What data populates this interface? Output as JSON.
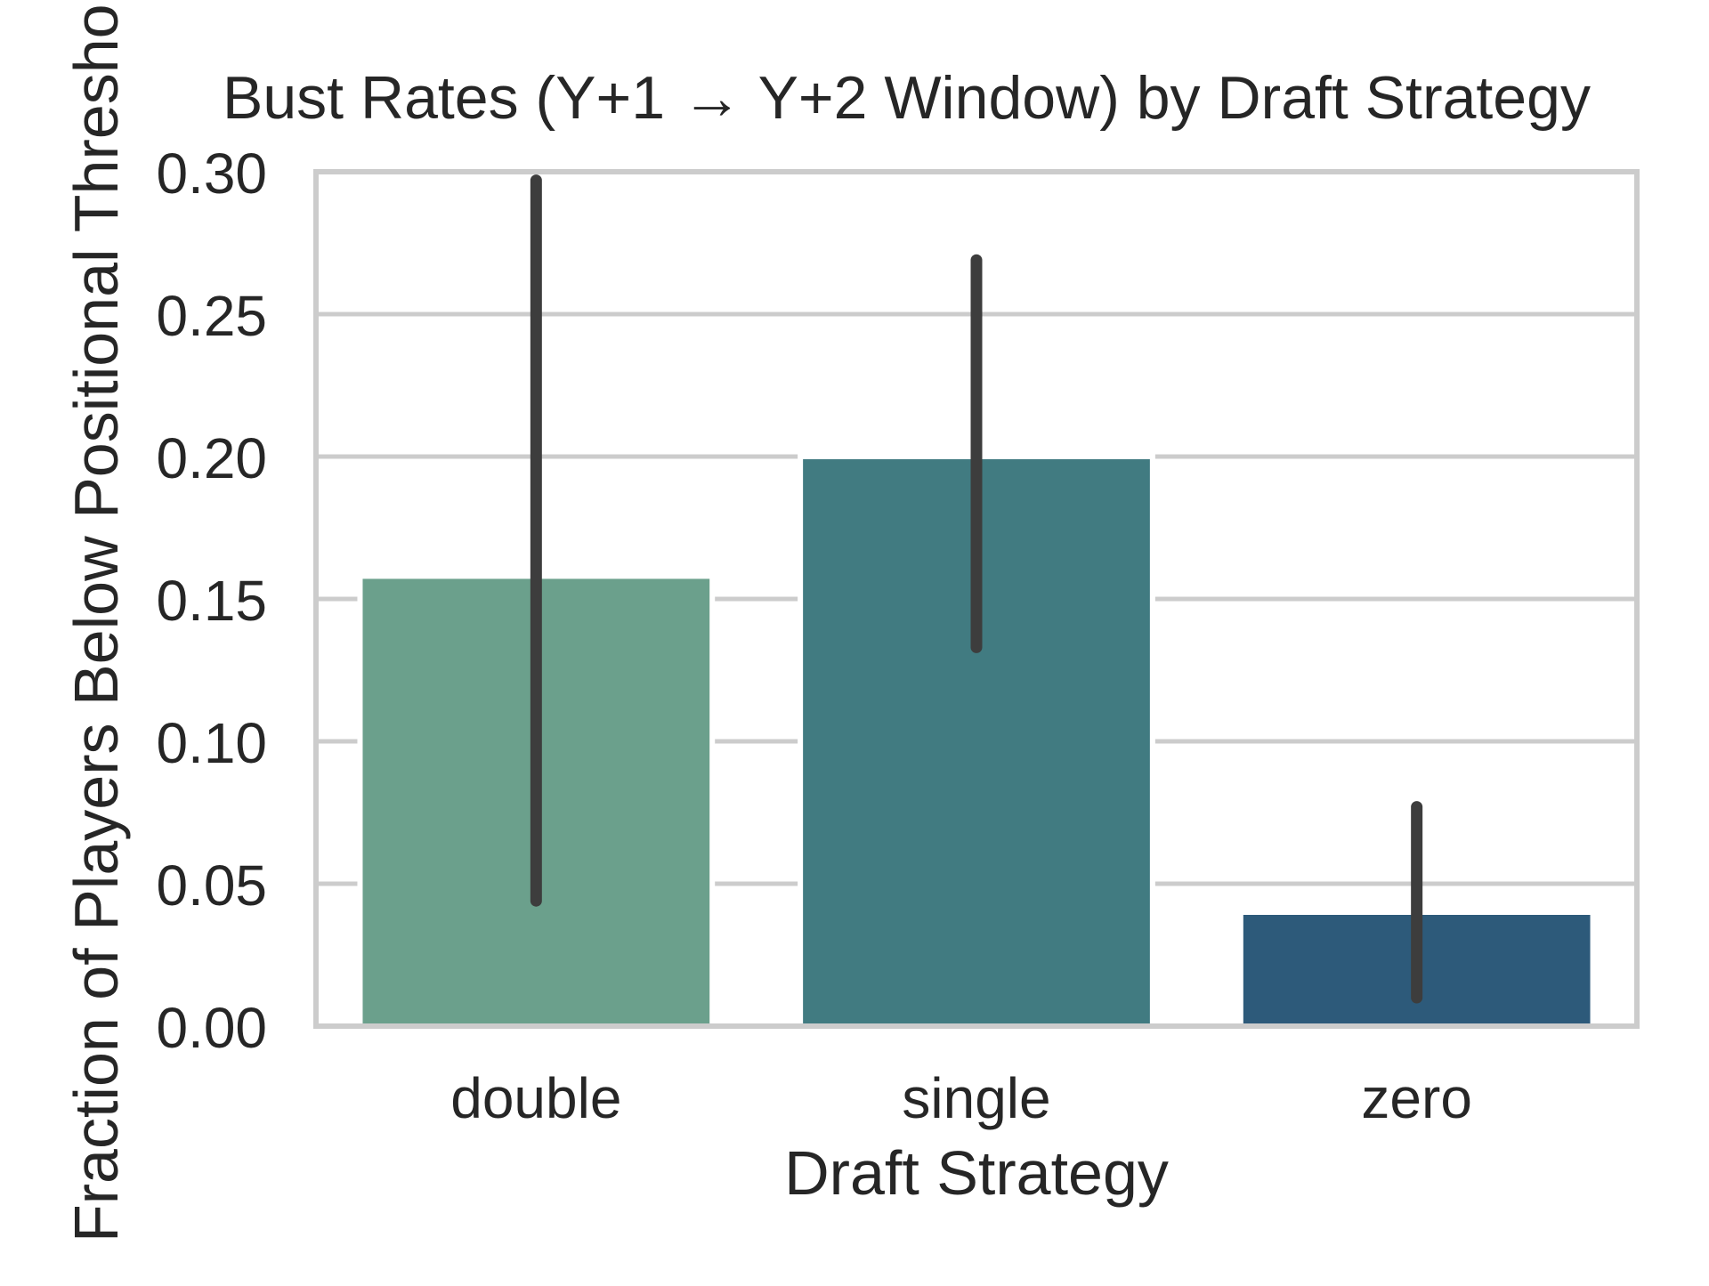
{
  "chart_data": {
    "type": "bar",
    "title": "Bust Rates (Y+1 → Y+2 Window) by Draft Strategy",
    "xlabel": "Draft Strategy",
    "ylabel": "Fraction of Players Below Positional Threshold",
    "categories": [
      "double",
      "single",
      "zero"
    ],
    "values": [
      0.158,
      0.2,
      0.04
    ],
    "error_bars": [
      {
        "low": 0.044,
        "high": 0.297
      },
      {
        "low": 0.133,
        "high": 0.269
      },
      {
        "low": 0.01,
        "high": 0.077
      }
    ],
    "ylim": [
      0,
      0.3
    ],
    "yticks": [
      0,
      0.05,
      0.1,
      0.15,
      0.2,
      0.25,
      0.3
    ],
    "ytick_labels": [
      "0.00",
      "0.05",
      "0.10",
      "0.15",
      "0.20",
      "0.25",
      "0.30"
    ],
    "grid": true,
    "colors": [
      "#6ba08c",
      "#417b81",
      "#2d5a7a"
    ],
    "errorbar_color": "#3d3d3d",
    "grid_color": "#cccccc",
    "spine_color": "#cccccc"
  }
}
